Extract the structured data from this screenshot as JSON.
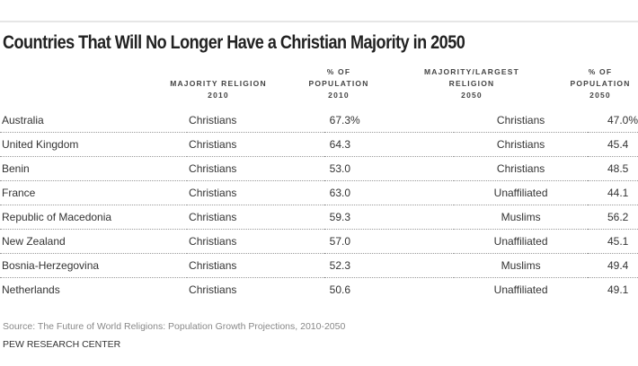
{
  "chart_data": {
    "type": "table",
    "title": "Countries That Will No Longer Have a Christian Majority in 2050",
    "columns": [
      {
        "key": "country",
        "label": []
      },
      {
        "key": "majority_religion_2010",
        "label": [
          "MAJORITY RELIGION",
          "2010"
        ]
      },
      {
        "key": "pct_population_2010",
        "label": [
          "% OF",
          "POPULATION",
          "2010"
        ]
      },
      {
        "key": "majority_religion_2050",
        "label": [
          "MAJORITY/LARGEST",
          "RELIGION",
          "2050"
        ]
      },
      {
        "key": "pct_population_2050",
        "label": [
          "% OF",
          "POPULATION",
          "2050"
        ]
      }
    ],
    "rows": [
      {
        "country": "Australia",
        "rel2010": "Christians",
        "pct2010": "67.3%",
        "rel2050": "Christians",
        "pct2050": "47.0%"
      },
      {
        "country": "United Kingdom",
        "rel2010": "Christians",
        "pct2010": "64.3",
        "rel2050": "Christians",
        "pct2050": "45.4"
      },
      {
        "country": "Benin",
        "rel2010": "Christians",
        "pct2010": "53.0",
        "rel2050": "Christians",
        "pct2050": "48.5"
      },
      {
        "country": "France",
        "rel2010": "Christians",
        "pct2010": "63.0",
        "rel2050": "Unaffiliated",
        "pct2050": "44.1"
      },
      {
        "country": "Republic of Macedonia",
        "rel2010": "Christians",
        "pct2010": "59.3",
        "rel2050": "Muslims",
        "pct2050": "56.2"
      },
      {
        "country": "New Zealand",
        "rel2010": "Christians",
        "pct2010": "57.0",
        "rel2050": "Unaffiliated",
        "pct2050": "45.1"
      },
      {
        "country": "Bosnia-Herzegovina",
        "rel2010": "Christians",
        "pct2010": "52.3",
        "rel2050": "Muslims",
        "pct2050": "49.4"
      },
      {
        "country": "Netherlands",
        "rel2010": "Christians",
        "pct2010": "50.6",
        "rel2050": "Unaffiliated",
        "pct2050": "49.1"
      }
    ],
    "source": "Source: The Future of World Religions: Population Growth Projections, 2010-2050",
    "credit": "PEW RESEARCH CENTER"
  }
}
